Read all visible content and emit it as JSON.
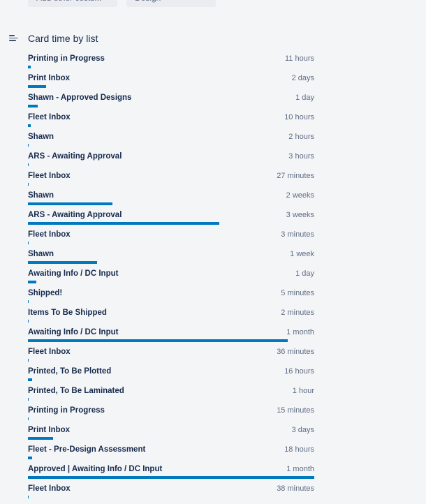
{
  "top_fields": [
    {
      "text": "Add other costs..."
    },
    {
      "text": "Design"
    }
  ],
  "section": {
    "title": "Card time by list",
    "icon": "list-align-icon"
  },
  "accent_color": "#0079bf",
  "rows": [
    {
      "label": "Printing in Progress",
      "time": "11 hours",
      "fill": 0.009
    },
    {
      "label": "Print Inbox",
      "time": "2 days",
      "fill": 0.063
    },
    {
      "label": "Shawn - Approved Designs",
      "time": "1 day",
      "fill": 0.034
    },
    {
      "label": "Fleet Inbox",
      "time": "10 hours",
      "fill": 0.009
    },
    {
      "label": "Shawn",
      "time": "2 hours",
      "fill": 0.002
    },
    {
      "label": "ARS - Awaiting Approval",
      "time": "3 hours",
      "fill": 0.003
    },
    {
      "label": "Fleet Inbox",
      "time": "27 minutes",
      "fill": 0.001
    },
    {
      "label": "Shawn",
      "time": "2 weeks",
      "fill": 0.295
    },
    {
      "label": "ARS - Awaiting Approval",
      "time": "3 weeks",
      "fill": 0.668
    },
    {
      "label": "Fleet Inbox",
      "time": "3 minutes",
      "fill": 0.001
    },
    {
      "label": "Shawn",
      "time": "1 week",
      "fill": 0.241
    },
    {
      "label": "Awaiting Info / DC Input",
      "time": "1 day",
      "fill": 0.029
    },
    {
      "label": "Shipped!",
      "time": "5 minutes",
      "fill": 0.001
    },
    {
      "label": "Items To Be Shipped",
      "time": "2 minutes",
      "fill": 0.001
    },
    {
      "label": "Awaiting Info / DC Input",
      "time": "1 month",
      "fill": 0.907
    },
    {
      "label": "Fleet Inbox",
      "time": "36 minutes",
      "fill": 0.001
    },
    {
      "label": "Printed, To Be Plotted",
      "time": "16 hours",
      "fill": 0.015
    },
    {
      "label": "Printed, To Be Laminated",
      "time": "1 hour",
      "fill": 0.002
    },
    {
      "label": "Printing in Progress",
      "time": "15 minutes",
      "fill": 0.001
    },
    {
      "label": "Print Inbox",
      "time": "3 days",
      "fill": 0.088
    },
    {
      "label": "Fleet - Pre-Design Assessment",
      "time": "18 hours",
      "fill": 0.015
    },
    {
      "label": "Approved | Awaiting Info / DC Input",
      "time": "1 month",
      "fill": 1.0
    },
    {
      "label": "Fleet Inbox",
      "time": "38 minutes",
      "fill": 0.001
    }
  ]
}
